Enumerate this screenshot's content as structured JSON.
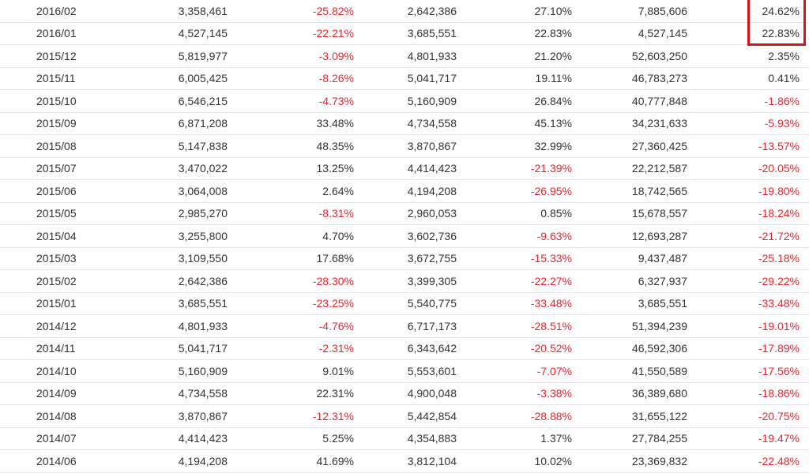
{
  "table": {
    "rows": [
      [
        "2016/02",
        "3,358,461",
        "-25.82%",
        "2,642,386",
        "27.10%",
        "7,885,606",
        "24.62%"
      ],
      [
        "2016/01",
        "4,527,145",
        "-22.21%",
        "3,685,551",
        "22.83%",
        "4,527,145",
        "22.83%"
      ],
      [
        "2015/12",
        "5,819,977",
        "-3.09%",
        "4,801,933",
        "21.20%",
        "52,603,250",
        "2.35%"
      ],
      [
        "2015/11",
        "6,005,425",
        "-8.26%",
        "5,041,717",
        "19.11%",
        "46,783,273",
        "0.41%"
      ],
      [
        "2015/10",
        "6,546,215",
        "-4.73%",
        "5,160,909",
        "26.84%",
        "40,777,848",
        "-1.86%"
      ],
      [
        "2015/09",
        "6,871,208",
        "33.48%",
        "4,734,558",
        "45.13%",
        "34,231,633",
        "-5.93%"
      ],
      [
        "2015/08",
        "5,147,838",
        "48.35%",
        "3,870,867",
        "32.99%",
        "27,360,425",
        "-13.57%"
      ],
      [
        "2015/07",
        "3,470,022",
        "13.25%",
        "4,414,423",
        "-21.39%",
        "22,212,587",
        "-20.05%"
      ],
      [
        "2015/06",
        "3,064,008",
        "2.64%",
        "4,194,208",
        "-26.95%",
        "18,742,565",
        "-19.80%"
      ],
      [
        "2015/05",
        "2,985,270",
        "-8.31%",
        "2,960,053",
        "0.85%",
        "15,678,557",
        "-18.24%"
      ],
      [
        "2015/04",
        "3,255,800",
        "4.70%",
        "3,602,736",
        "-9.63%",
        "12,693,287",
        "-21.72%"
      ],
      [
        "2015/03",
        "3,109,550",
        "17.68%",
        "3,672,755",
        "-15.33%",
        "9,437,487",
        "-25.18%"
      ],
      [
        "2015/02",
        "2,642,386",
        "-28.30%",
        "3,399,305",
        "-22.27%",
        "6,327,937",
        "-29.22%"
      ],
      [
        "2015/01",
        "3,685,551",
        "-23.25%",
        "5,540,775",
        "-33.48%",
        "3,685,551",
        "-33.48%"
      ],
      [
        "2014/12",
        "4,801,933",
        "-4.76%",
        "6,717,173",
        "-28.51%",
        "51,394,239",
        "-19.01%"
      ],
      [
        "2014/11",
        "5,041,717",
        "-2.31%",
        "6,343,642",
        "-20.52%",
        "46,592,306",
        "-17.89%"
      ],
      [
        "2014/10",
        "5,160,909",
        "9.01%",
        "5,553,601",
        "-7.07%",
        "41,550,589",
        "-17.56%"
      ],
      [
        "2014/09",
        "4,734,558",
        "22.31%",
        "4,900,048",
        "-3.38%",
        "36,389,680",
        "-18.86%"
      ],
      [
        "2014/08",
        "3,870,867",
        "-12.31%",
        "5,442,854",
        "-28.88%",
        "31,655,122",
        "-20.75%"
      ],
      [
        "2014/07",
        "4,414,423",
        "5.25%",
        "4,354,883",
        "1.37%",
        "27,784,255",
        "-19.47%"
      ],
      [
        "2014/06",
        "4,194,208",
        "41.69%",
        "3,812,104",
        "10.02%",
        "23,369,832",
        "-22.48%"
      ]
    ]
  },
  "colors": {
    "negative": "#e8262f",
    "text": "#333333",
    "highlight_border": "#d4141a"
  }
}
